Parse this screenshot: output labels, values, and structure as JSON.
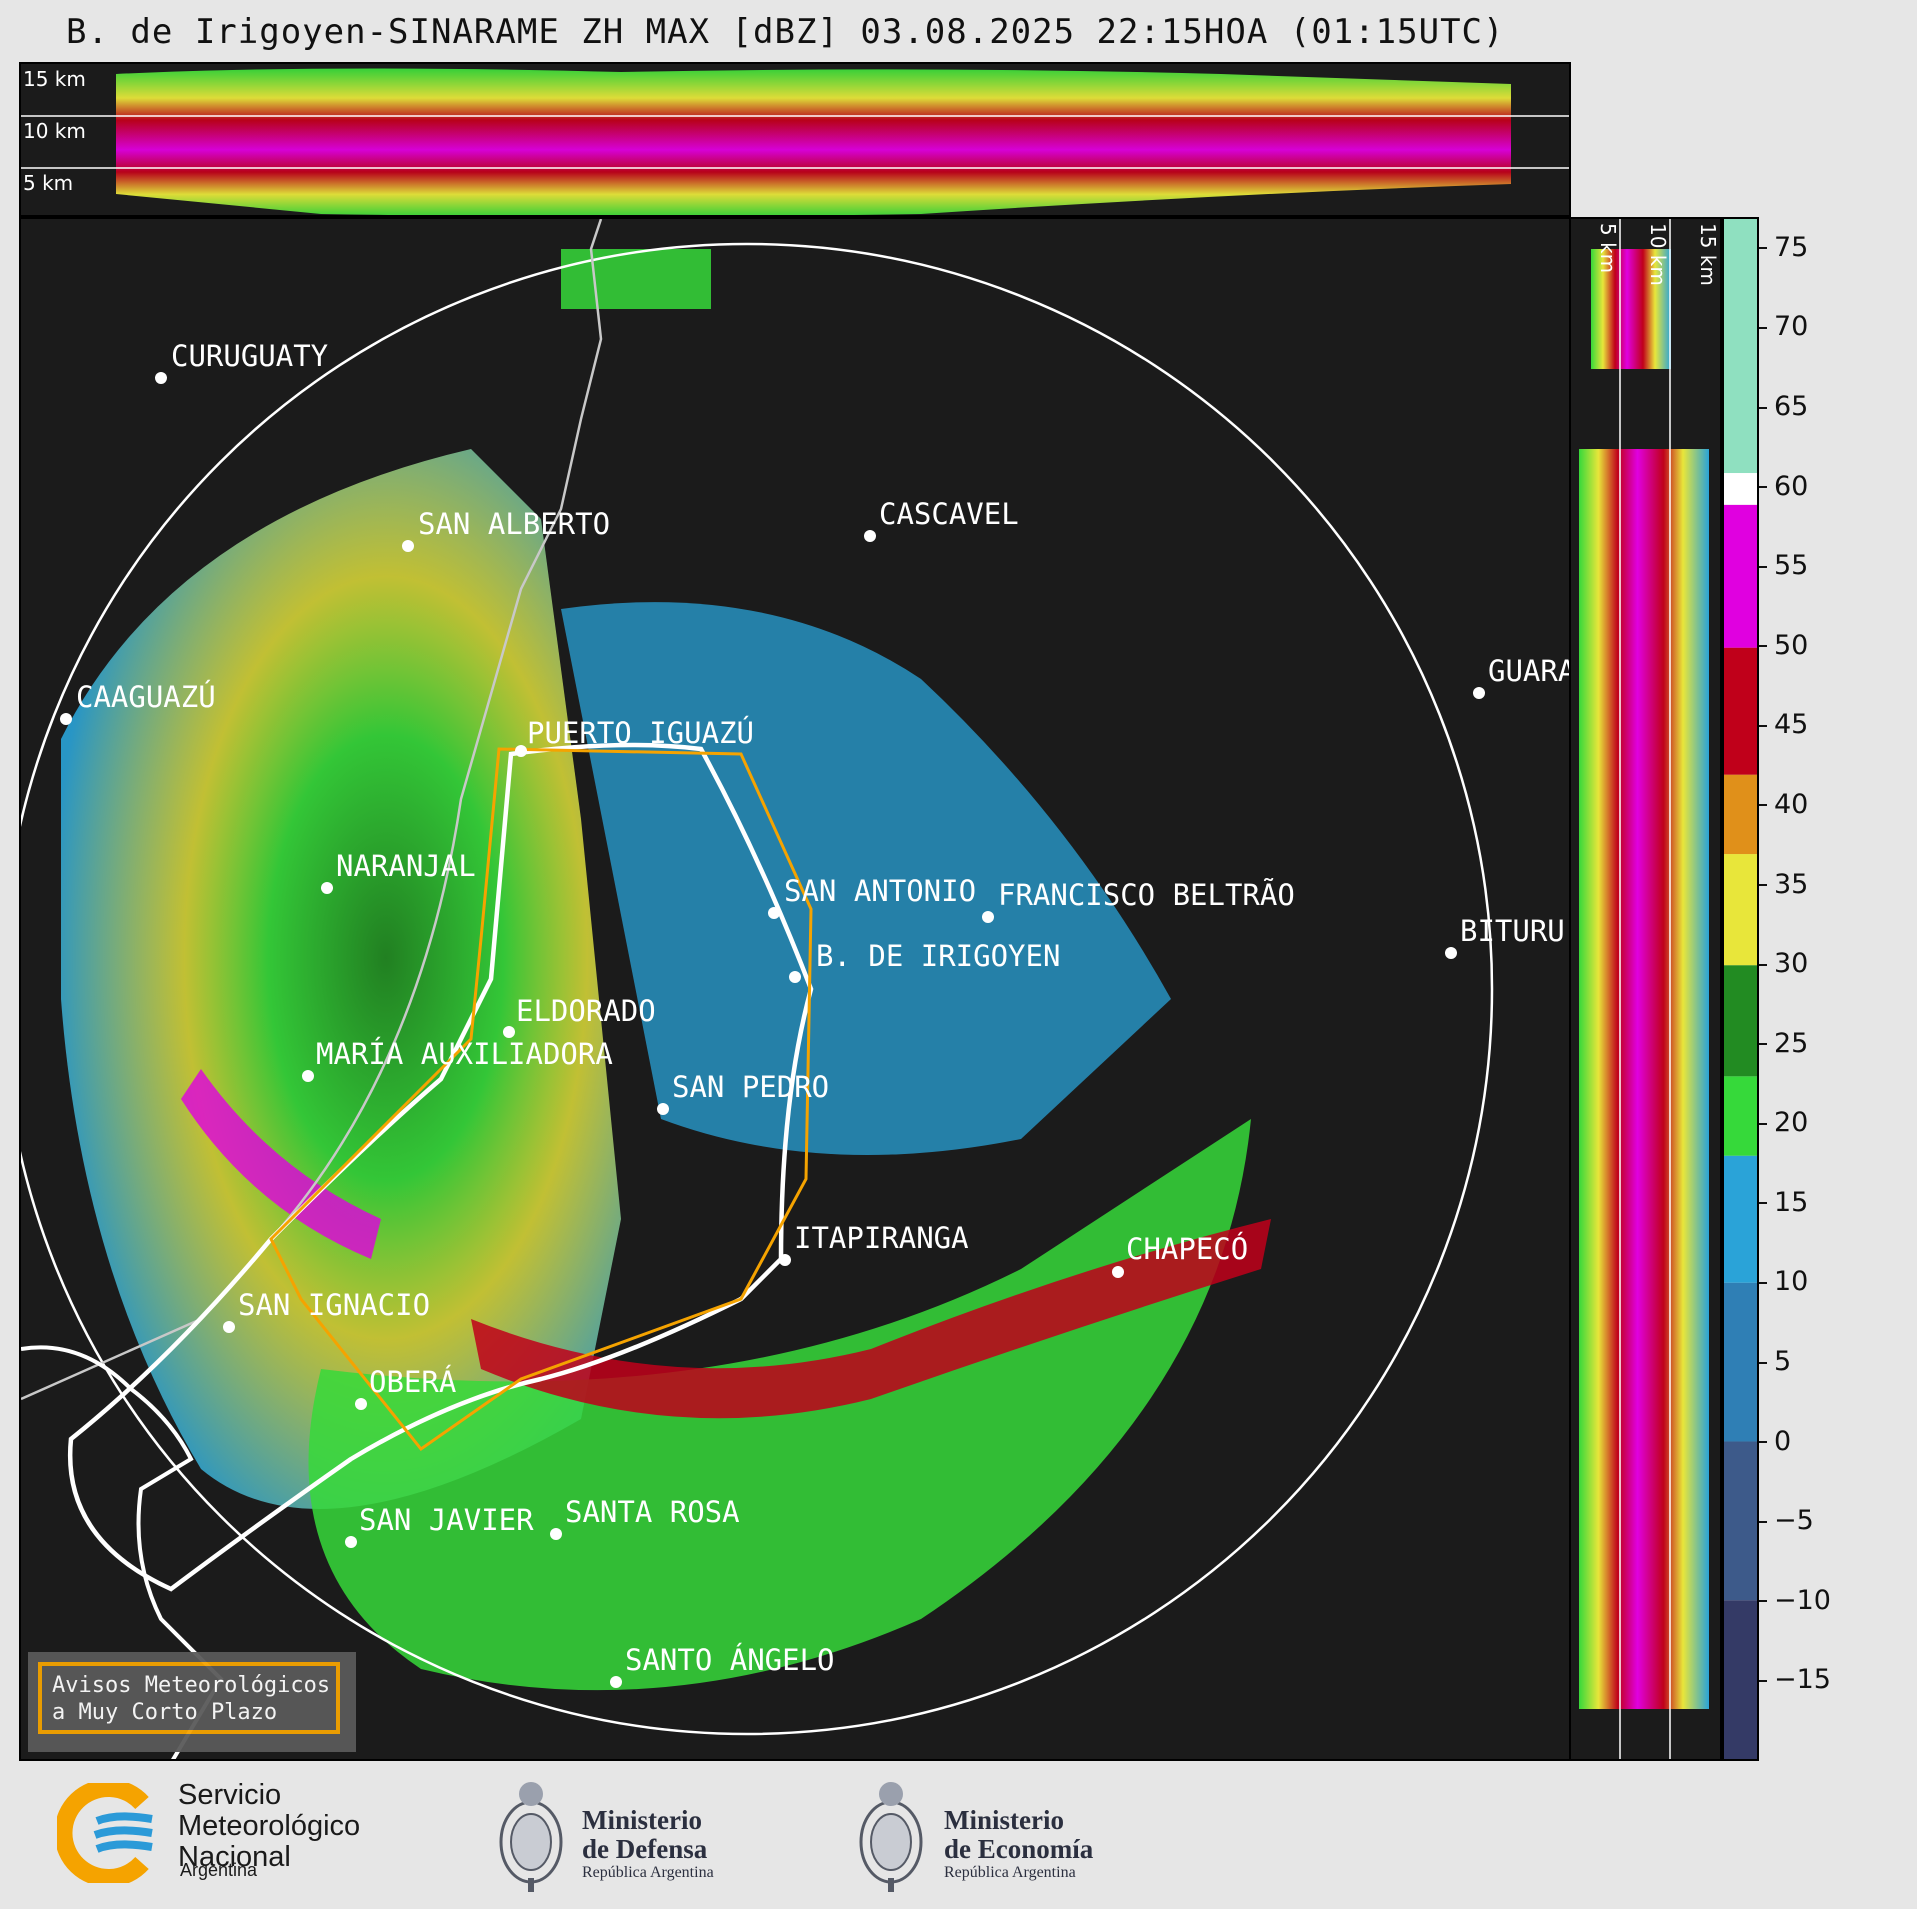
{
  "title": "B. de Irigoyen-SINARAME ZH MAX [dBZ] 03.08.2025 22:15HOA (01:15UTC)",
  "top_panel": {
    "height_labels": [
      "15 km",
      "10 km",
      "5 km"
    ]
  },
  "side_panel": {
    "height_labels": [
      "5 km",
      "10 km",
      "15 km"
    ]
  },
  "colorbar": {
    "unit": "dBZ",
    "ticks": [
      "75",
      "70",
      "65",
      "60",
      "55",
      "50",
      "45",
      "40",
      "35",
      "30",
      "25",
      "20",
      "15",
      "10",
      "5",
      "0",
      "−5",
      "−10",
      "−15"
    ],
    "stops": [
      {
        "from": -20,
        "to": -10,
        "color": "#343a66"
      },
      {
        "from": -10,
        "to": 0,
        "color": "#3d5a8a"
      },
      {
        "from": 0,
        "to": 10,
        "color": "#2f7fb5"
      },
      {
        "from": 10,
        "to": 18,
        "color": "#2aa3d8"
      },
      {
        "from": 18,
        "to": 23,
        "color": "#36d93a"
      },
      {
        "from": 23,
        "to": 30,
        "color": "#228b22"
      },
      {
        "from": 30,
        "to": 37,
        "color": "#e8e63a"
      },
      {
        "from": 37,
        "to": 42,
        "color": "#e0901a"
      },
      {
        "from": 42,
        "to": 50,
        "color": "#c0001a"
      },
      {
        "from": 50,
        "to": 59,
        "color": "#e000e0"
      },
      {
        "from": 59,
        "to": 61,
        "color": "#ffffff"
      },
      {
        "from": 61,
        "to": 77,
        "color": "#8fe0c0"
      }
    ]
  },
  "cities": [
    {
      "name": "CURUGUATY",
      "kind": "city"
    },
    {
      "name": "SAN ALBERTO",
      "kind": "city"
    },
    {
      "name": "CASCAVEL",
      "kind": "city"
    },
    {
      "name": "CAAGUAZÚ",
      "kind": "city"
    },
    {
      "name": "GUARA",
      "kind": "city"
    },
    {
      "name": "PUERTO IGUAZÚ",
      "kind": "city"
    },
    {
      "name": "NARANJAL",
      "kind": "city"
    },
    {
      "name": "SAN ANTONIO",
      "kind": "city"
    },
    {
      "name": "FRANCISCO BELTRÃO",
      "kind": "city"
    },
    {
      "name": "B. DE IRIGOYEN",
      "kind": "radar"
    },
    {
      "name": "BITURU",
      "kind": "city"
    },
    {
      "name": "ELDORADO",
      "kind": "city"
    },
    {
      "name": "MARÍA AUXILIADORA",
      "kind": "city"
    },
    {
      "name": "SAN PEDRO",
      "kind": "city"
    },
    {
      "name": "ITAPIRANGA",
      "kind": "city"
    },
    {
      "name": "CHAPECÓ",
      "kind": "city"
    },
    {
      "name": "SAN IGNACIO",
      "kind": "city"
    },
    {
      "name": "OBERÁ",
      "kind": "city"
    },
    {
      "name": "SAN JAVIER",
      "kind": "city"
    },
    {
      "name": "SANTA ROSA",
      "kind": "city"
    },
    {
      "name": "SANTO ÁNGELO",
      "kind": "city"
    }
  ],
  "legend": {
    "line1": "Avisos Meteorológicos",
    "line2": "a Muy Corto Plazo",
    "border_color": "#f5a300"
  },
  "footer": {
    "smn": {
      "line1": "Servicio",
      "line2": "Meteorológico",
      "line3": "Nacional",
      "sub": "Argentina"
    },
    "defensa": {
      "line1": "Ministerio",
      "line2": "de Defensa",
      "sub": "República Argentina"
    },
    "economia": {
      "line1": "Ministerio",
      "line2": "de Economía",
      "sub": "República Argentina"
    }
  }
}
